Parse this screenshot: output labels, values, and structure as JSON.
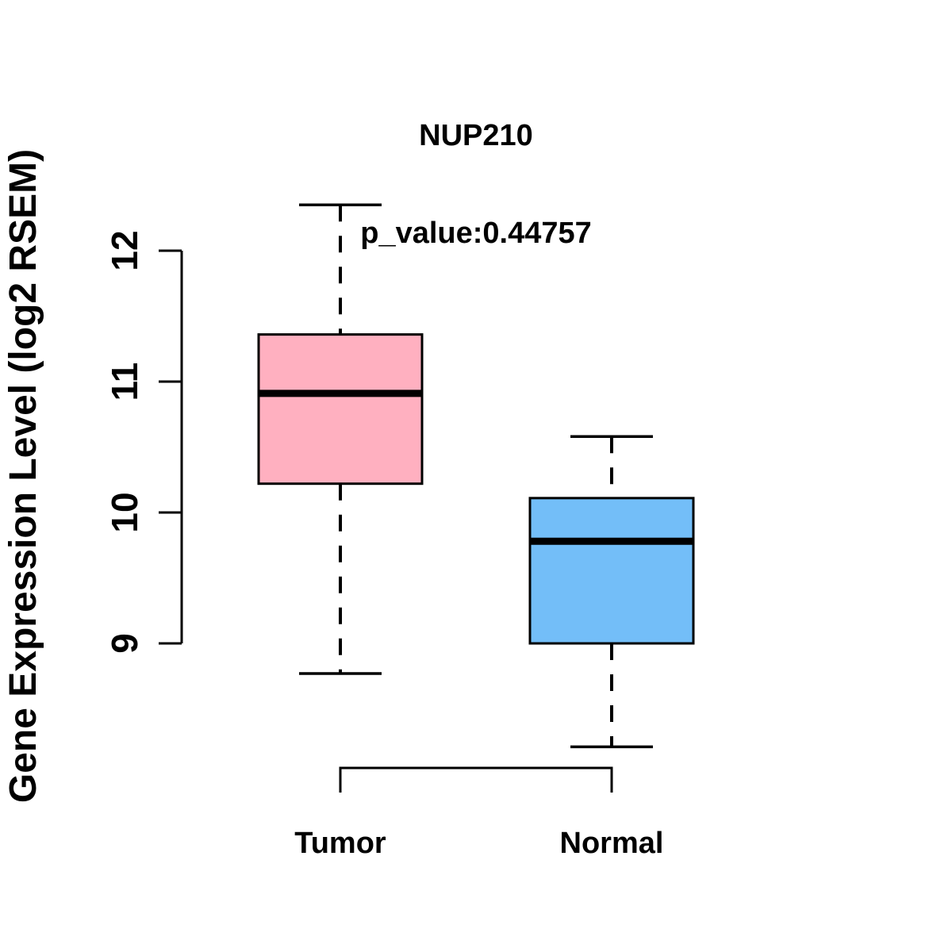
{
  "figure": {
    "title": "NUP210",
    "subtitle": "p_value:0.44757",
    "background": "#FFFFFF"
  },
  "chart_data": {
    "type": "boxplot",
    "title": "NUP210",
    "p_value_label": "p_value:0.44757",
    "p_value": 0.44757,
    "ylabel": "Gene Expression Level (log2 RSEM)",
    "ylim": [
      9,
      12
    ],
    "yticks": [
      9,
      10,
      11,
      12
    ],
    "categories": [
      "Tumor",
      "Normal"
    ],
    "grid": false,
    "legend_position": "none",
    "stroke_color": "#000000",
    "series": [
      {
        "name": "Tumor",
        "fill_color": "#FFB0C0",
        "whisker_low": 8.77,
        "q1": 10.22,
        "median": 10.91,
        "q3": 11.36,
        "whisker_high": 12.35
      },
      {
        "name": "Normal",
        "fill_color": "#73BEF8",
        "whisker_low": 8.21,
        "q1": 9.0,
        "median": 9.78,
        "q3": 10.11,
        "whisker_high": 10.58
      }
    ]
  }
}
